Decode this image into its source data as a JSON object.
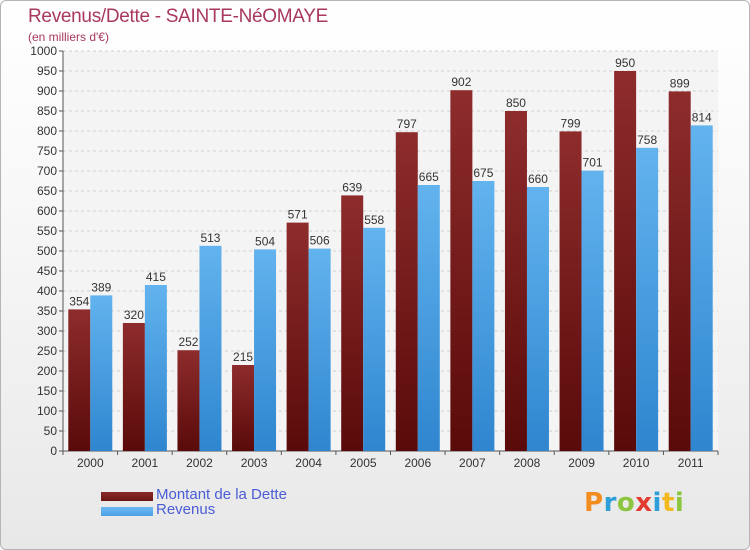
{
  "header": {
    "title": "Revenus/Dette - SAINTE-NéOMAYE",
    "subtitle": "(en milliers d'€)"
  },
  "legend": [
    {
      "label": "Montant de la Dette",
      "color": "#6b1414"
    },
    {
      "label": "Revenus",
      "color": "#4aa3e8"
    }
  ],
  "logo": {
    "text": "Proxiti",
    "letters": [
      {
        "char": "P",
        "color": "#f28c1e"
      },
      {
        "char": "r",
        "color": "#2e9fd8"
      },
      {
        "char": "o",
        "color": "#8cc63f"
      },
      {
        "char": "x",
        "color": "#e23c2e"
      },
      {
        "char": "i",
        "color": "#2e9fd8"
      },
      {
        "char": "t",
        "color": "#f2b81e"
      },
      {
        "char": "i",
        "color": "#8cc63f"
      }
    ]
  },
  "chart_data": {
    "type": "bar",
    "title": "Revenus/Dette - SAINTE-NéOMAYE",
    "ylabel": "(en milliers d'€)",
    "xlabel": "",
    "categories": [
      "2000",
      "2001",
      "2002",
      "2003",
      "2004",
      "2005",
      "2006",
      "2007",
      "2008",
      "2009",
      "2010",
      "2011"
    ],
    "series": [
      {
        "name": "Montant de la Dette",
        "color": "#6b1414",
        "values": [
          354,
          320,
          252,
          215,
          571,
          639,
          797,
          902,
          850,
          799,
          950,
          899
        ]
      },
      {
        "name": "Revenus",
        "color": "#4aa3e8",
        "values": [
          389,
          415,
          513,
          504,
          506,
          558,
          665,
          675,
          660,
          701,
          758,
          814
        ]
      }
    ],
    "ylim": [
      0,
      1000
    ],
    "ytick_step": 50,
    "grid": true,
    "legend_position": "bottom-left"
  }
}
